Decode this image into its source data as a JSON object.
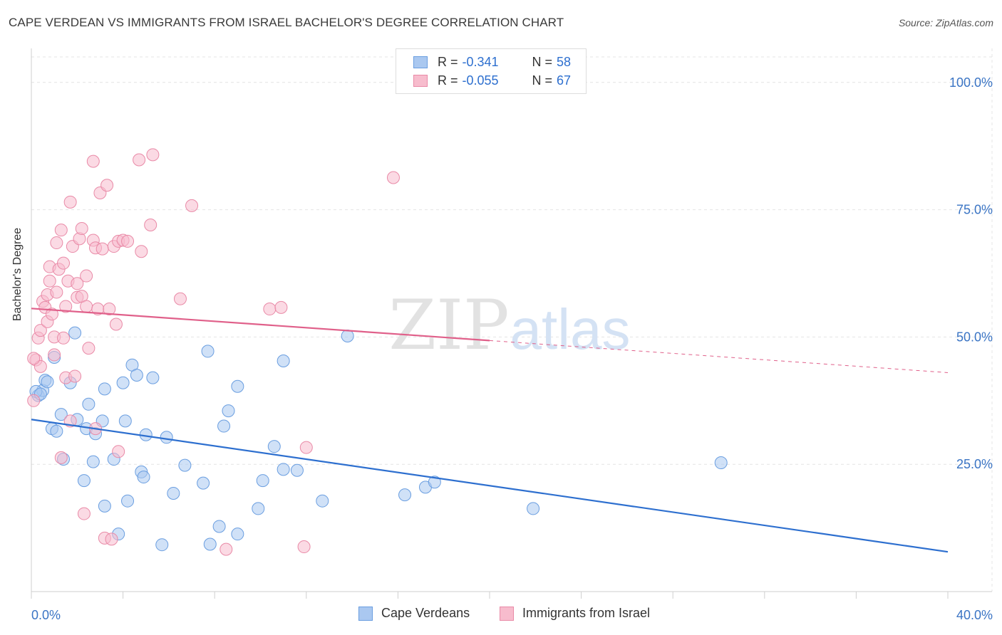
{
  "title": "CAPE VERDEAN VS IMMIGRANTS FROM ISRAEL BACHELOR'S DEGREE CORRELATION CHART",
  "source": "Source: ZipAtlas.com",
  "watermark": {
    "zip": "ZIP",
    "atlas": "atlas"
  },
  "legend": {
    "row1": {
      "r_label": "R =",
      "r_value": "-0.341",
      "n_label": "N =",
      "n_value": "58"
    },
    "row2": {
      "r_label": "R =",
      "r_value": "-0.055",
      "n_label": "N =",
      "n_value": "67"
    }
  },
  "bottom_legend": {
    "series1": "Cape Verdeans",
    "series2": "Immigrants from Israel"
  },
  "colors": {
    "blue_fill": "#aac8f0",
    "blue_stroke": "#6a9ee0",
    "blue_line": "#2d6fcf",
    "pink_fill": "#f7bccd",
    "pink_stroke": "#e98aa7",
    "pink_line": "#e0608a",
    "tick_text": "#3a74c4",
    "grid": "#e4e4e4"
  },
  "chart_data": {
    "type": "scatter",
    "title": "CAPE VERDEAN VS IMMIGRANTS FROM ISRAEL BACHELOR'S DEGREE CORRELATION CHART",
    "xlabel": "",
    "ylabel": "Bachelor's Degree",
    "xlim": [
      0,
      40
    ],
    "ylim": [
      0,
      105
    ],
    "x_tick_labels": [
      "0.0%",
      "40.0%"
    ],
    "y_ticks": [
      25,
      50,
      75,
      100
    ],
    "y_tick_labels": [
      "25.0%",
      "50.0%",
      "75.0%",
      "100.0%"
    ],
    "grid": true,
    "series": [
      {
        "name": "Cape Verdeans",
        "r": -0.341,
        "n": 58,
        "trend": {
          "x": [
            0,
            40
          ],
          "y": [
            33.8,
            7.8
          ],
          "x_solid_end": 40
        },
        "points": [
          [
            0.3,
            38.5
          ],
          [
            0.5,
            39.5
          ],
          [
            0.6,
            41.5
          ],
          [
            0.7,
            41.2
          ],
          [
            1.0,
            46.0
          ],
          [
            0.9,
            32.0
          ],
          [
            1.1,
            31.5
          ],
          [
            1.3,
            34.8
          ],
          [
            1.4,
            26.0
          ],
          [
            1.7,
            41.0
          ],
          [
            1.9,
            50.8
          ],
          [
            2.0,
            33.8
          ],
          [
            2.3,
            21.8
          ],
          [
            2.5,
            36.8
          ],
          [
            2.4,
            32.0
          ],
          [
            2.7,
            25.5
          ],
          [
            2.8,
            31.0
          ],
          [
            3.1,
            33.5
          ],
          [
            3.2,
            39.8
          ],
          [
            3.2,
            16.8
          ],
          [
            3.6,
            26.0
          ],
          [
            3.8,
            11.3
          ],
          [
            4.1,
            33.5
          ],
          [
            4.0,
            41.0
          ],
          [
            4.2,
            17.8
          ],
          [
            4.4,
            44.5
          ],
          [
            4.6,
            42.5
          ],
          [
            4.8,
            23.5
          ],
          [
            4.9,
            22.5
          ],
          [
            5.0,
            30.8
          ],
          [
            5.3,
            42.0
          ],
          [
            5.7,
            9.2
          ],
          [
            5.9,
            30.3
          ],
          [
            6.2,
            19.3
          ],
          [
            6.7,
            24.8
          ],
          [
            7.5,
            21.3
          ],
          [
            7.7,
            47.2
          ],
          [
            7.8,
            9.3
          ],
          [
            8.2,
            12.8
          ],
          [
            8.4,
            32.5
          ],
          [
            8.6,
            35.5
          ],
          [
            9.0,
            40.3
          ],
          [
            9.0,
            11.3
          ],
          [
            9.9,
            16.3
          ],
          [
            10.1,
            21.8
          ],
          [
            10.6,
            28.5
          ],
          [
            11.0,
            45.3
          ],
          [
            11.0,
            24.0
          ],
          [
            11.6,
            23.8
          ],
          [
            12.7,
            17.8
          ],
          [
            13.8,
            50.2
          ],
          [
            16.3,
            19.0
          ],
          [
            17.2,
            20.5
          ],
          [
            17.6,
            21.5
          ],
          [
            21.9,
            16.3
          ],
          [
            30.1,
            25.3
          ],
          [
            0.2,
            39.3
          ],
          [
            0.4,
            38.8
          ]
        ]
      },
      {
        "name": "Immigrants from Israel",
        "r": -0.055,
        "n": 67,
        "trend": {
          "x": [
            0,
            40
          ],
          "y": [
            55.6,
            43.0
          ],
          "x_solid_end": 20
        },
        "points": [
          [
            0.1,
            37.5
          ],
          [
            0.2,
            45.5
          ],
          [
            0.3,
            49.8
          ],
          [
            0.4,
            51.3
          ],
          [
            0.4,
            44.2
          ],
          [
            0.5,
            57.0
          ],
          [
            0.6,
            55.8
          ],
          [
            0.7,
            53.0
          ],
          [
            0.7,
            58.3
          ],
          [
            0.8,
            61.0
          ],
          [
            0.8,
            63.8
          ],
          [
            0.9,
            54.5
          ],
          [
            1.0,
            46.5
          ],
          [
            1.0,
            50.0
          ],
          [
            1.1,
            68.5
          ],
          [
            1.1,
            58.8
          ],
          [
            1.2,
            63.3
          ],
          [
            1.3,
            71.0
          ],
          [
            1.3,
            26.3
          ],
          [
            1.4,
            64.5
          ],
          [
            1.4,
            49.8
          ],
          [
            1.5,
            42.0
          ],
          [
            1.5,
            56.0
          ],
          [
            1.6,
            61.0
          ],
          [
            1.7,
            76.5
          ],
          [
            1.7,
            33.5
          ],
          [
            1.8,
            67.8
          ],
          [
            1.9,
            42.3
          ],
          [
            2.0,
            60.5
          ],
          [
            2.0,
            57.8
          ],
          [
            2.1,
            69.3
          ],
          [
            2.2,
            71.3
          ],
          [
            2.3,
            15.3
          ],
          [
            2.2,
            58.0
          ],
          [
            2.4,
            62.0
          ],
          [
            2.4,
            56.0
          ],
          [
            2.5,
            47.8
          ],
          [
            2.7,
            69.0
          ],
          [
            2.7,
            84.5
          ],
          [
            2.8,
            67.5
          ],
          [
            2.8,
            32.0
          ],
          [
            2.9,
            55.5
          ],
          [
            3.0,
            78.3
          ],
          [
            3.1,
            67.3
          ],
          [
            3.2,
            10.5
          ],
          [
            3.3,
            79.8
          ],
          [
            3.4,
            55.5
          ],
          [
            3.5,
            10.3
          ],
          [
            3.6,
            67.8
          ],
          [
            3.7,
            52.5
          ],
          [
            3.8,
            27.5
          ],
          [
            3.8,
            68.8
          ],
          [
            4.0,
            69.0
          ],
          [
            4.2,
            68.8
          ],
          [
            4.7,
            84.8
          ],
          [
            4.8,
            66.8
          ],
          [
            5.2,
            72.0
          ],
          [
            5.3,
            85.8
          ],
          [
            6.5,
            57.5
          ],
          [
            7.0,
            75.8
          ],
          [
            8.5,
            8.3
          ],
          [
            10.4,
            55.5
          ],
          [
            10.9,
            55.8
          ],
          [
            11.9,
            8.8
          ],
          [
            12.0,
            28.3
          ],
          [
            15.8,
            81.3
          ],
          [
            0.1,
            45.8
          ]
        ]
      }
    ]
  }
}
